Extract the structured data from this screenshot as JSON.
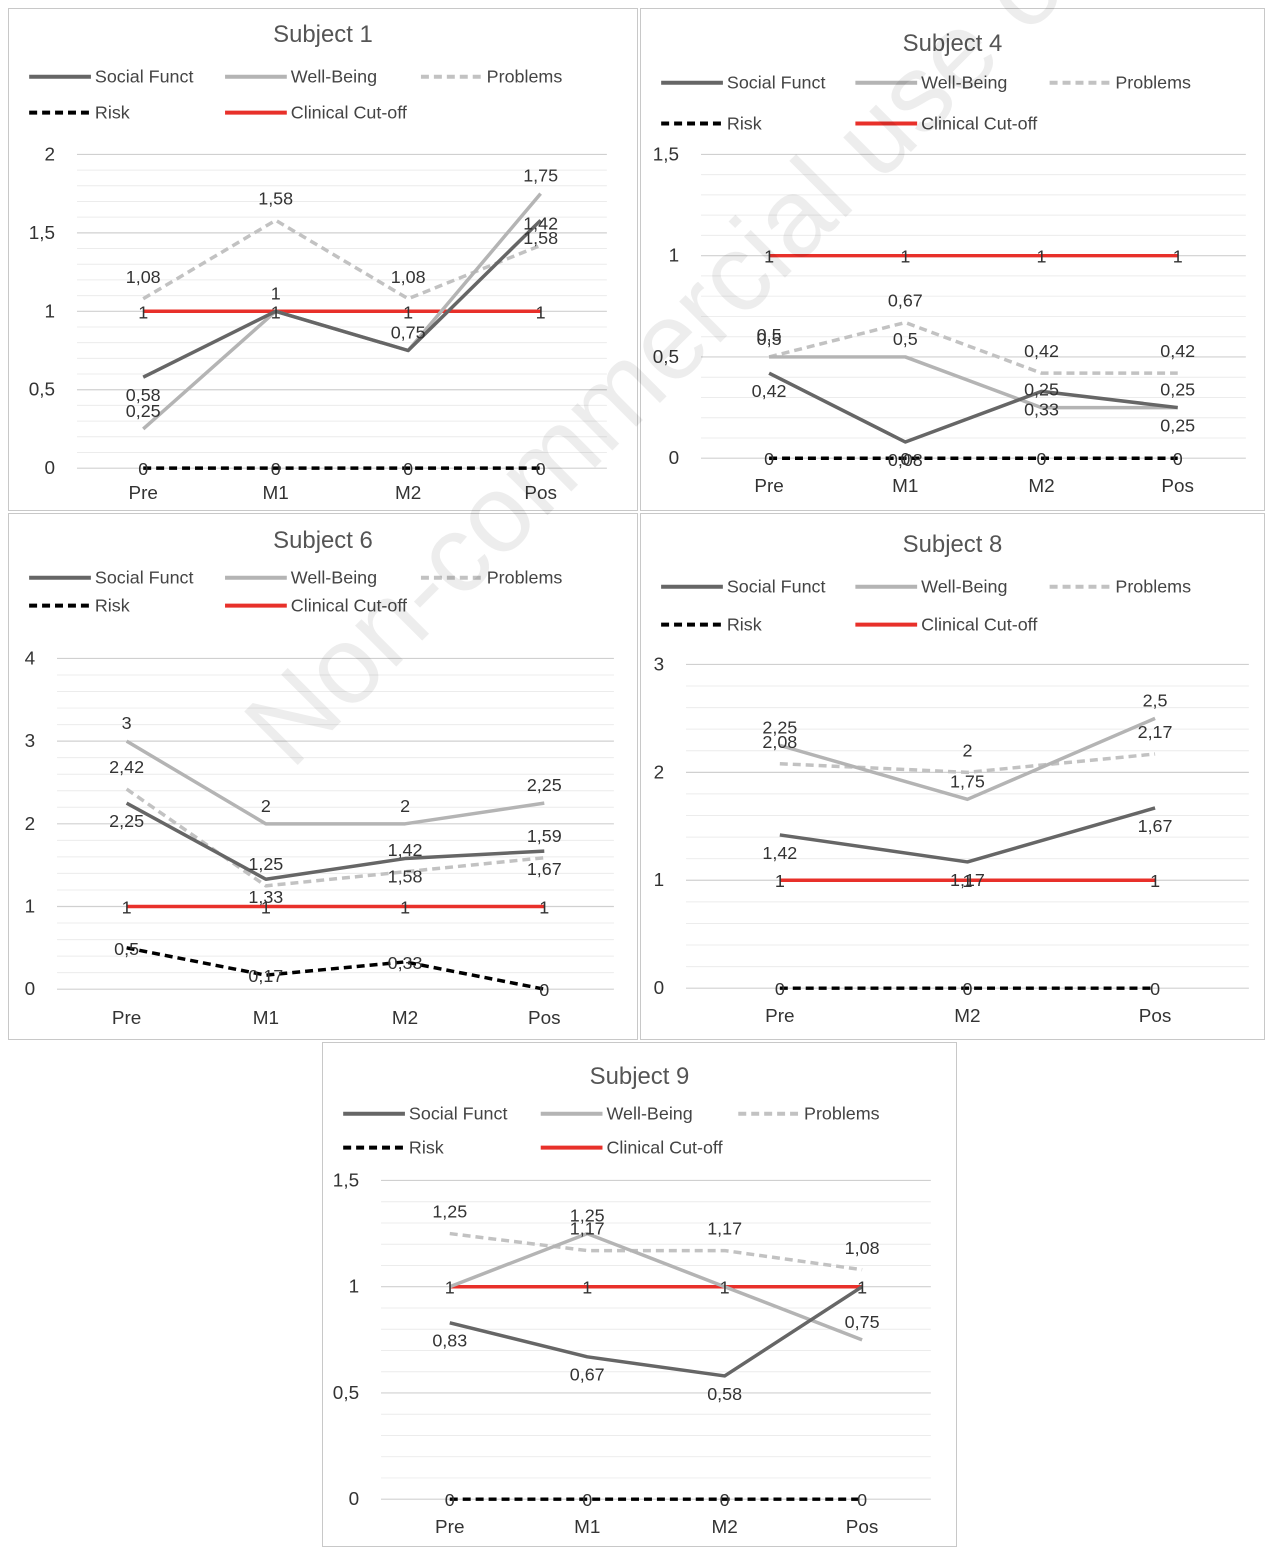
{
  "watermark": "Non-commercial use only",
  "legend_labels": [
    "Social Funct",
    "Well-Being",
    "Problems",
    "Risk",
    "Clinical Cut-off"
  ],
  "series_styles": {
    "Social Funct": {
      "color": "#666666",
      "dash": "none"
    },
    "Well-Being": {
      "color": "#b4b4b4",
      "dash": "none"
    },
    "Problems": {
      "color": "#c2c2c2",
      "dash": "8,5"
    },
    "Risk": {
      "color": "#000000",
      "dash": "8,5"
    },
    "Clinical Cut-off": {
      "color": "#e8302a",
      "dash": "none"
    }
  },
  "chart_data": [
    {
      "title": "Subject 1",
      "type": "line",
      "categories": [
        "Pre",
        "M1",
        "M2",
        "Pos"
      ],
      "ylim": [
        0,
        2
      ],
      "yticks": [
        "0",
        "0,5",
        "1",
        "1,5",
        "2"
      ],
      "series": [
        {
          "name": "Social Funct",
          "values": [
            0.58,
            1,
            0.75,
            1.58
          ],
          "labels": [
            "0,58",
            "",
            "",
            "1,58"
          ]
        },
        {
          "name": "Well-Being",
          "values": [
            0.25,
            1,
            0.75,
            1.75
          ],
          "labels": [
            "0,25",
            "1",
            "0,75",
            "1,75"
          ]
        },
        {
          "name": "Problems",
          "values": [
            1.08,
            1.58,
            1.08,
            1.42
          ],
          "labels": [
            "1,08",
            "1,58",
            "1,08",
            "1,42"
          ]
        },
        {
          "name": "Risk",
          "values": [
            0,
            0,
            0,
            0
          ],
          "labels": [
            "0",
            "0",
            "0",
            "0"
          ]
        },
        {
          "name": "Clinical Cut-off",
          "values": [
            1,
            1,
            1,
            1
          ],
          "labels": [
            "1",
            "1",
            "1",
            "1"
          ]
        }
      ]
    },
    {
      "title": "Subject 4",
      "type": "line",
      "categories": [
        "Pre",
        "M1",
        "M2",
        "Pos"
      ],
      "ylim": [
        0,
        1.5
      ],
      "yticks": [
        "0",
        "0,5",
        "1",
        "1,5"
      ],
      "series": [
        {
          "name": "Social Funct",
          "values": [
            0.42,
            0.08,
            0.33,
            0.25
          ],
          "labels": [
            "0,42",
            "0,08",
            "0,33",
            "0,25"
          ]
        },
        {
          "name": "Well-Being",
          "values": [
            0.5,
            0.5,
            0.25,
            0.25
          ],
          "labels": [
            "0,5",
            "0,5",
            "0,25",
            "0,25"
          ]
        },
        {
          "name": "Problems",
          "values": [
            0.5,
            0.67,
            0.42,
            0.42
          ],
          "labels": [
            "0,5",
            "0,67",
            "0,42",
            "0,42"
          ]
        },
        {
          "name": "Risk",
          "values": [
            0,
            0,
            0,
            0
          ],
          "labels": [
            "0",
            "0",
            "0",
            "0"
          ]
        },
        {
          "name": "Clinical Cut-off",
          "values": [
            1,
            1,
            1,
            1
          ],
          "labels": [
            "1",
            "1",
            "1",
            "1"
          ]
        }
      ]
    },
    {
      "title": "Subject 6",
      "type": "line",
      "categories": [
        "Pre",
        "M1",
        "M2",
        "Pos"
      ],
      "ylim": [
        0,
        4
      ],
      "yticks": [
        "0",
        "1",
        "2",
        "3",
        "4"
      ],
      "series": [
        {
          "name": "Social Funct",
          "values": [
            2.25,
            1.33,
            1.58,
            1.67
          ],
          "labels": [
            "2,25",
            "1,33",
            "1,58",
            "1,67"
          ]
        },
        {
          "name": "Well-Being",
          "values": [
            3,
            2,
            2,
            2.25
          ],
          "labels": [
            "3",
            "2",
            "2",
            "2,25"
          ]
        },
        {
          "name": "Problems",
          "values": [
            2.42,
            1.25,
            1.42,
            1.59
          ],
          "labels": [
            "2,42",
            "1,25",
            "1,42",
            "1,59"
          ]
        },
        {
          "name": "Risk",
          "values": [
            0.5,
            0.17,
            0.33,
            0
          ],
          "labels": [
            "0,5",
            "0,17",
            "0,33",
            "0"
          ]
        },
        {
          "name": "Clinical Cut-off",
          "values": [
            1,
            1,
            1,
            1
          ],
          "labels": [
            "1",
            "1",
            "1",
            "1"
          ]
        }
      ]
    },
    {
      "title": "Subject 8",
      "type": "line",
      "categories": [
        "Pre",
        "M2",
        "Pos"
      ],
      "ylim": [
        0,
        3
      ],
      "yticks": [
        "0",
        "1",
        "2",
        "3"
      ],
      "series": [
        {
          "name": "Social Funct",
          "values": [
            1.42,
            1.17,
            1.67
          ],
          "labels": [
            "1,42",
            "1,17",
            "1,67"
          ]
        },
        {
          "name": "Well-Being",
          "values": [
            2.25,
            1.75,
            2.5
          ],
          "labels": [
            "2,25",
            "1,75",
            "2,5"
          ]
        },
        {
          "name": "Problems",
          "values": [
            2.08,
            2,
            2.17
          ],
          "labels": [
            "2,08",
            "2",
            "2,17"
          ]
        },
        {
          "name": "Risk",
          "values": [
            0,
            0,
            0
          ],
          "labels": [
            "0",
            "0",
            "0"
          ]
        },
        {
          "name": "Clinical Cut-off",
          "values": [
            1,
            1,
            1
          ],
          "labels": [
            "1",
            "1",
            "1"
          ]
        }
      ]
    },
    {
      "title": "Subject 9",
      "type": "line",
      "categories": [
        "Pre",
        "M1",
        "M2",
        "Pos"
      ],
      "ylim": [
        0,
        1.5
      ],
      "yticks": [
        "0",
        "0,5",
        "1",
        "1,5"
      ],
      "series": [
        {
          "name": "Social Funct",
          "values": [
            0.83,
            0.67,
            0.58,
            1
          ],
          "labels": [
            "0,83",
            "0,67",
            "0,58",
            ""
          ]
        },
        {
          "name": "Well-Being",
          "values": [
            1,
            1.25,
            1,
            0.75
          ],
          "labels": [
            "",
            "1,25",
            "",
            "0,75"
          ]
        },
        {
          "name": "Problems",
          "values": [
            1.25,
            1.17,
            1.17,
            1.08
          ],
          "labels": [
            "1,25",
            "1,17",
            "1,17",
            "1,08"
          ]
        },
        {
          "name": "Risk",
          "values": [
            0,
            0,
            0,
            0
          ],
          "labels": [
            "0",
            "0",
            "0",
            "0"
          ]
        },
        {
          "name": "Clinical Cut-off",
          "values": [
            1,
            1,
            1,
            1
          ],
          "labels": [
            "1",
            "1",
            "1",
            "1"
          ]
        }
      ]
    }
  ]
}
